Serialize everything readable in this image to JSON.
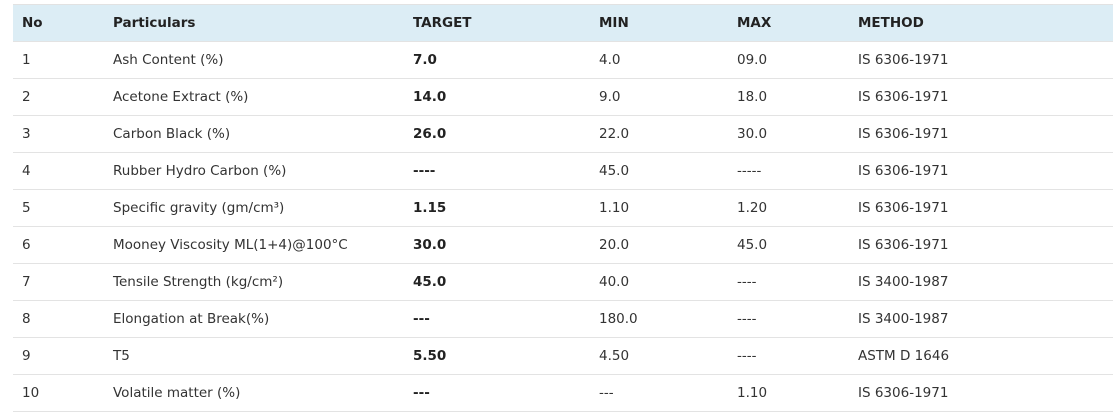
{
  "table": {
    "headers": [
      "No",
      "Particulars",
      "TARGET",
      "MIN",
      "MAX",
      "METHOD"
    ],
    "rows": [
      [
        "1",
        "Ash Content (%)",
        "7.0",
        "4.0",
        "09.0",
        "IS 6306-1971"
      ],
      [
        "2",
        "Acetone Extract (%)",
        "14.0",
        "9.0",
        "18.0",
        "IS 6306-1971"
      ],
      [
        "3",
        "Carbon Black (%)",
        "26.0",
        "22.0",
        "30.0",
        "IS 6306-1971"
      ],
      [
        "4",
        "Rubber Hydro Carbon (%)",
        "----",
        "45.0",
        "-----",
        "IS 6306-1971"
      ],
      [
        "5",
        "Specific gravity (gm/cm³)",
        "1.15",
        "1.10",
        "1.20",
        "IS 6306-1971"
      ],
      [
        "6",
        "Mooney Viscosity ML(1+4)@100°C",
        "30.0",
        "20.0",
        "45.0",
        "IS 6306-1971"
      ],
      [
        "7",
        "Tensile Strength (kg/cm²)",
        "45.0",
        "40.0",
        "----",
        "IS 3400-1987"
      ],
      [
        "8",
        "Elongation at Break(%)",
        "---",
        "180.0",
        "----",
        "IS 3400-1987"
      ],
      [
        "9",
        "T5",
        "5.50",
        "4.50",
        "----",
        "ASTM D 1646"
      ],
      [
        "10",
        "Volatile matter (%)",
        "---",
        "---",
        "1.10",
        "IS 6306-1971"
      ]
    ]
  }
}
